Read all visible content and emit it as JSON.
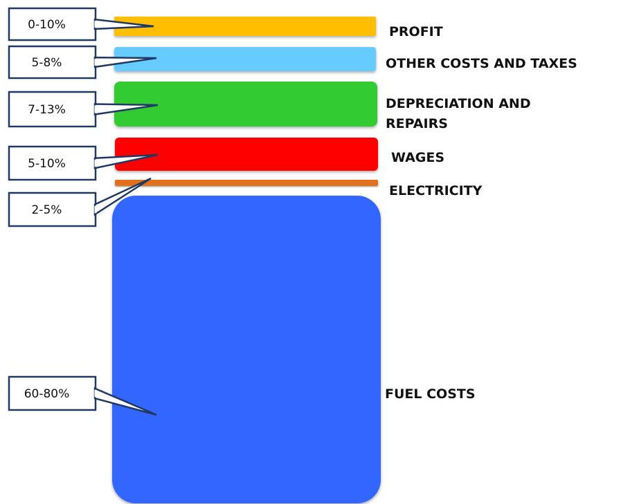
{
  "chart_data": {
    "type": "bar",
    "segments": [
      {
        "name": "PROFIT",
        "range_label": "0-10%",
        "min": 0,
        "max": 10,
        "color": "#FFBF00"
      },
      {
        "name": "OTHER COSTS AND TAXES",
        "range_label": "5-8%",
        "min": 5,
        "max": 8,
        "color": "#66CCFF"
      },
      {
        "name": "DEPRECIATION AND REPAIRS",
        "range_label": "7-13%",
        "min": 7,
        "max": 13,
        "color": "#33CC33"
      },
      {
        "name": "WAGES",
        "range_label": "5-10%",
        "min": 5,
        "max": 10,
        "color": "#FF0000"
      },
      {
        "name": "ELECTRICITY",
        "range_label": "2-5%",
        "min": 2,
        "max": 5,
        "color": "#E0701A"
      },
      {
        "name": "FUEL COSTS",
        "range_label": "60-80%",
        "min": 60,
        "max": 80,
        "color": "#3366FF"
      }
    ]
  }
}
